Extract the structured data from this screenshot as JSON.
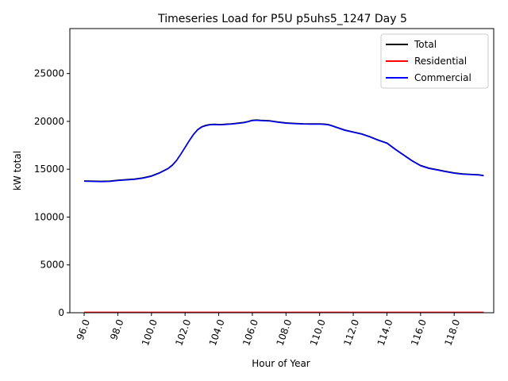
{
  "chart_data": {
    "type": "line",
    "title": "Timeseries Load for P5U p5uhs5_1247  Day 5",
    "xlabel": "Hour of Year",
    "ylabel": "kW total",
    "xlim": [
      95.15,
      120.35
    ],
    "ylim": [
      0,
      29700
    ],
    "x_ticks": [
      96,
      98,
      100,
      102,
      104,
      106,
      108,
      110,
      112,
      114,
      116,
      118
    ],
    "x_tick_labels": [
      "96.0",
      "98.0",
      "100.0",
      "102.0",
      "104.0",
      "106.0",
      "108.0",
      "110.0",
      "112.0",
      "114.0",
      "116.0",
      "118.0"
    ],
    "y_ticks": [
      0,
      5000,
      10000,
      15000,
      20000,
      25000
    ],
    "y_tick_labels": [
      "0",
      "5000",
      "10000",
      "15000",
      "20000",
      "25000"
    ],
    "grid": false,
    "legend_position": "top-right",
    "x": [
      96.0,
      96.5,
      97.0,
      97.5,
      98.0,
      98.5,
      99.0,
      99.5,
      100.0,
      100.5,
      101.0,
      101.25,
      101.5,
      101.75,
      102.0,
      102.25,
      102.5,
      102.75,
      103.0,
      103.25,
      103.5,
      103.75,
      104.0,
      104.25,
      104.5,
      104.75,
      105.0,
      105.25,
      105.5,
      105.75,
      106.0,
      106.25,
      106.5,
      107.0,
      107.5,
      108.0,
      108.5,
      109.0,
      109.5,
      110.0,
      110.25,
      110.5,
      110.75,
      111.0,
      111.5,
      112.0,
      112.5,
      113.0,
      113.5,
      114.0,
      114.5,
      115.0,
      115.5,
      116.0,
      116.5,
      117.0,
      117.5,
      118.0,
      118.5,
      119.0,
      119.5,
      119.75
    ],
    "series": [
      {
        "name": "Total",
        "color": "#000000",
        "values": [
          13780,
          13760,
          13740,
          13760,
          13850,
          13920,
          13980,
          14100,
          14300,
          14650,
          15100,
          15450,
          15950,
          16600,
          17300,
          18000,
          18650,
          19150,
          19450,
          19600,
          19680,
          19700,
          19680,
          19690,
          19720,
          19750,
          19800,
          19850,
          19900,
          20000,
          20120,
          20150,
          20120,
          20080,
          19950,
          19850,
          19800,
          19760,
          19740,
          19750,
          19720,
          19680,
          19550,
          19400,
          19100,
          18900,
          18700,
          18400,
          18050,
          17750,
          17100,
          16500,
          15900,
          15400,
          15120,
          14950,
          14780,
          14620,
          14520,
          14470,
          14420,
          14350
        ]
      },
      {
        "name": "Residential",
        "color": "#ff0000",
        "values": [
          50,
          50,
          50,
          50,
          50,
          50,
          50,
          50,
          50,
          50,
          50,
          50,
          50,
          50,
          50,
          50,
          50,
          50,
          50,
          50,
          50,
          50,
          50,
          50,
          50,
          50,
          50,
          50,
          50,
          50,
          50,
          50,
          50,
          50,
          50,
          50,
          50,
          50,
          50,
          50,
          50,
          50,
          50,
          50,
          50,
          50,
          50,
          50,
          50,
          50,
          50,
          50,
          50,
          50,
          50,
          50,
          50,
          50,
          50,
          50,
          50,
          50
        ]
      },
      {
        "name": "Commercial",
        "color": "#0000ff",
        "values": [
          13740,
          13720,
          13700,
          13720,
          13810,
          13880,
          13940,
          14060,
          14260,
          14610,
          15060,
          15410,
          15910,
          16560,
          17260,
          17960,
          18610,
          19110,
          19410,
          19560,
          19640,
          19660,
          19640,
          19650,
          19680,
          19710,
          19760,
          19810,
          19860,
          19960,
          20080,
          20110,
          20080,
          20040,
          19910,
          19810,
          19760,
          19720,
          19700,
          19710,
          19680,
          19640,
          19510,
          19360,
          19060,
          18860,
          18660,
          18360,
          18010,
          17710,
          17060,
          16460,
          15860,
          15360,
          15080,
          14910,
          14740,
          14580,
          14480,
          14430,
          14380,
          14310
        ]
      }
    ]
  }
}
